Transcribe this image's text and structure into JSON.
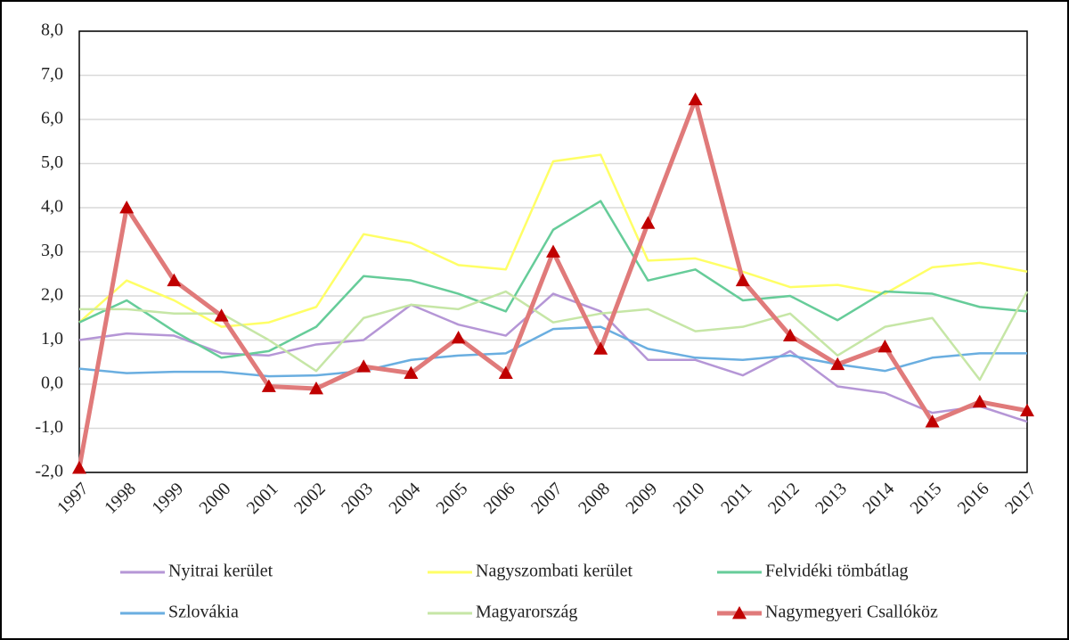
{
  "chart_data": {
    "type": "line",
    "categories": [
      "1997",
      "1998",
      "1999",
      "2000",
      "2001",
      "2002",
      "2003",
      "2004",
      "2005",
      "2006",
      "2007",
      "2008",
      "2009",
      "2010",
      "2011",
      "2012",
      "2013",
      "2014",
      "2015",
      "2016",
      "2017"
    ],
    "ylim": [
      -2,
      8
    ],
    "yticks": [
      {
        "value": -2,
        "label": "-2,0"
      },
      {
        "value": -1,
        "label": "-1,0"
      },
      {
        "value": 0,
        "label": "0,0"
      },
      {
        "value": 1,
        "label": "1,0"
      },
      {
        "value": 2,
        "label": "2,0"
      },
      {
        "value": 3,
        "label": "3,0"
      },
      {
        "value": 4,
        "label": "4,0"
      },
      {
        "value": 5,
        "label": "5,0"
      },
      {
        "value": 6,
        "label": "6,0"
      },
      {
        "value": 7,
        "label": "7,0"
      },
      {
        "value": 8,
        "label": "8,0"
      }
    ],
    "grid": true,
    "legend": "bottom",
    "series": [
      {
        "name": "Nyitrai kerület",
        "color": "#b596d6",
        "values": [
          1.0,
          1.15,
          1.1,
          0.7,
          0.65,
          0.9,
          1.0,
          1.8,
          1.35,
          1.1,
          2.05,
          1.65,
          0.55,
          0.55,
          0.2,
          0.75,
          -0.05,
          -0.2,
          -0.65,
          -0.5,
          -0.85
        ]
      },
      {
        "name": "Nagyszombati kerület",
        "color": "#ffff66",
        "values": [
          1.4,
          2.35,
          1.9,
          1.3,
          1.4,
          1.75,
          3.4,
          3.2,
          2.7,
          2.6,
          5.05,
          5.2,
          2.8,
          2.85,
          2.55,
          2.2,
          2.25,
          2.05,
          2.65,
          2.75,
          2.55
        ]
      },
      {
        "name": "Felvidéki tömbátlag",
        "color": "#66cc99",
        "values": [
          1.4,
          1.9,
          1.2,
          0.6,
          0.75,
          1.3,
          2.45,
          2.35,
          2.05,
          1.65,
          3.5,
          4.15,
          2.35,
          2.6,
          1.9,
          2.0,
          1.45,
          2.1,
          2.05,
          1.75,
          1.65
        ]
      },
      {
        "name": "Szlovákia",
        "color": "#6aaee0",
        "values": [
          0.35,
          0.25,
          0.28,
          0.28,
          0.18,
          0.2,
          0.3,
          0.55,
          0.65,
          0.7,
          1.25,
          1.3,
          0.8,
          0.6,
          0.55,
          0.65,
          0.45,
          0.3,
          0.6,
          0.7,
          0.7
        ]
      },
      {
        "name": "Magyarország",
        "color": "#c6e6a6",
        "values": [
          1.7,
          1.7,
          1.6,
          1.6,
          1.0,
          0.3,
          1.5,
          1.8,
          1.7,
          2.1,
          1.4,
          1.6,
          1.7,
          1.2,
          1.3,
          1.6,
          0.65,
          1.3,
          1.5,
          0.1,
          2.1
        ]
      },
      {
        "name": "Nagymegyeri Csallóköz",
        "color": "#e07a7a",
        "marker": "triangle",
        "markercolor": "#c00000",
        "values": [
          -1.9,
          4.0,
          2.35,
          1.55,
          -0.05,
          -0.1,
          0.4,
          0.25,
          1.05,
          0.25,
          3.0,
          0.8,
          3.65,
          6.45,
          2.35,
          1.1,
          0.45,
          0.85,
          -0.85,
          -0.4,
          -0.6
        ]
      }
    ]
  }
}
